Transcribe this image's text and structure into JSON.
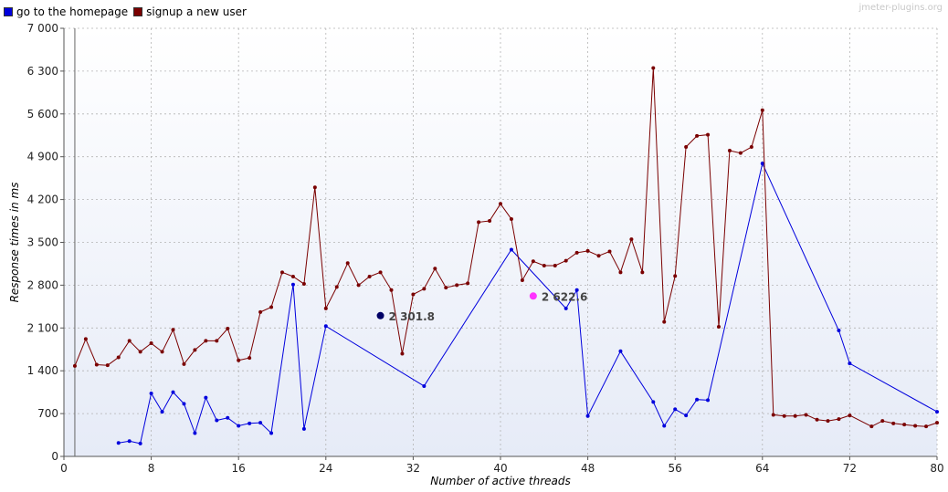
{
  "legend": {
    "series1": "go to the homepage",
    "series2": "signup a new user"
  },
  "watermark": "jmeter-plugins.org",
  "colors": {
    "series1": "#0000dd",
    "series2": "#7a0000",
    "marker1": "#000066",
    "marker2": "#ff33ff"
  },
  "chart_data": {
    "type": "line",
    "xlabel": "Number of active threads",
    "ylabel": "Response times in ms",
    "xlim": [
      0,
      80
    ],
    "ylim": [
      0,
      7000
    ],
    "xticks": [
      0,
      8,
      16,
      24,
      32,
      40,
      48,
      56,
      64,
      72,
      80
    ],
    "yticks": [
      0,
      700,
      1400,
      2100,
      2800,
      3500,
      4200,
      4900,
      5600,
      6300,
      7000
    ],
    "ytick_labels": [
      "0",
      "700",
      "1 400",
      "2 100",
      "2 800",
      "3 500",
      "4 200",
      "4 900",
      "5 600",
      "6 300",
      "7 000"
    ],
    "grid": true,
    "legend_position": "top-left",
    "series": [
      {
        "name": "go to the homepage",
        "points": [
          [
            5,
            220
          ],
          [
            6,
            250
          ],
          [
            7,
            210
          ],
          [
            8,
            1030
          ],
          [
            9,
            730
          ],
          [
            10,
            1050
          ],
          [
            11,
            860
          ],
          [
            12,
            380
          ],
          [
            13,
            960
          ],
          [
            14,
            590
          ],
          [
            15,
            630
          ],
          [
            16,
            500
          ],
          [
            17,
            540
          ],
          [
            18,
            550
          ],
          [
            19,
            380
          ],
          [
            21,
            2810
          ],
          [
            22,
            450
          ],
          [
            24,
            2130
          ],
          [
            33,
            1150
          ],
          [
            41,
            3380
          ],
          [
            46,
            2420
          ],
          [
            47,
            2720
          ],
          [
            48,
            660
          ],
          [
            51,
            1720
          ],
          [
            54,
            890
          ],
          [
            55,
            500
          ],
          [
            56,
            770
          ],
          [
            57,
            670
          ],
          [
            58,
            930
          ],
          [
            59,
            920
          ],
          [
            64,
            4790
          ],
          [
            71,
            2060
          ],
          [
            72,
            1520
          ],
          [
            80,
            730
          ]
        ]
      },
      {
        "name": "signup a new user",
        "points": [
          [
            1,
            1480
          ],
          [
            2,
            1920
          ],
          [
            3,
            1500
          ],
          [
            4,
            1490
          ],
          [
            5,
            1620
          ],
          [
            6,
            1890
          ],
          [
            7,
            1710
          ],
          [
            8,
            1850
          ],
          [
            9,
            1710
          ],
          [
            10,
            2070
          ],
          [
            11,
            1510
          ],
          [
            12,
            1740
          ],
          [
            13,
            1890
          ],
          [
            14,
            1890
          ],
          [
            15,
            2090
          ],
          [
            16,
            1570
          ],
          [
            17,
            1610
          ],
          [
            18,
            2360
          ],
          [
            19,
            2440
          ],
          [
            20,
            3010
          ],
          [
            21,
            2940
          ],
          [
            22,
            2820
          ],
          [
            23,
            4400
          ],
          [
            24,
            2420
          ],
          [
            25,
            2770
          ],
          [
            26,
            3160
          ],
          [
            27,
            2800
          ],
          [
            28,
            2940
          ],
          [
            29,
            3010
          ],
          [
            30,
            2720
          ],
          [
            31,
            1680
          ],
          [
            32,
            2650
          ],
          [
            33,
            2740
          ],
          [
            34,
            3070
          ],
          [
            35,
            2760
          ],
          [
            36,
            2800
          ],
          [
            37,
            2830
          ],
          [
            38,
            3830
          ],
          [
            39,
            3850
          ],
          [
            40,
            4130
          ],
          [
            41,
            3880
          ],
          [
            42,
            2880
          ],
          [
            43,
            3190
          ],
          [
            44,
            3120
          ],
          [
            45,
            3120
          ],
          [
            46,
            3200
          ],
          [
            47,
            3330
          ],
          [
            48,
            3360
          ],
          [
            49,
            3280
          ],
          [
            50,
            3350
          ],
          [
            51,
            3010
          ],
          [
            52,
            3550
          ],
          [
            53,
            3010
          ],
          [
            54,
            6350
          ],
          [
            55,
            2200
          ],
          [
            56,
            2950
          ],
          [
            57,
            5060
          ],
          [
            58,
            5240
          ],
          [
            59,
            5260
          ],
          [
            60,
            2120
          ],
          [
            61,
            5000
          ],
          [
            62,
            4960
          ],
          [
            63,
            5060
          ],
          [
            64,
            5660
          ],
          [
            65,
            680
          ],
          [
            66,
            660
          ],
          [
            67,
            660
          ],
          [
            68,
            680
          ],
          [
            69,
            600
          ],
          [
            70,
            580
          ],
          [
            71,
            610
          ],
          [
            72,
            670
          ],
          [
            74,
            490
          ],
          [
            75,
            580
          ],
          [
            76,
            540
          ],
          [
            77,
            520
          ],
          [
            78,
            500
          ],
          [
            79,
            490
          ],
          [
            80,
            550
          ]
        ]
      }
    ],
    "annotations": [
      {
        "label": "2 301.8",
        "x": 29,
        "y": 2301.8,
        "color_key": "marker1"
      },
      {
        "label": "2 622.6",
        "x": 43,
        "y": 2622.6,
        "color_key": "marker2"
      }
    ]
  }
}
